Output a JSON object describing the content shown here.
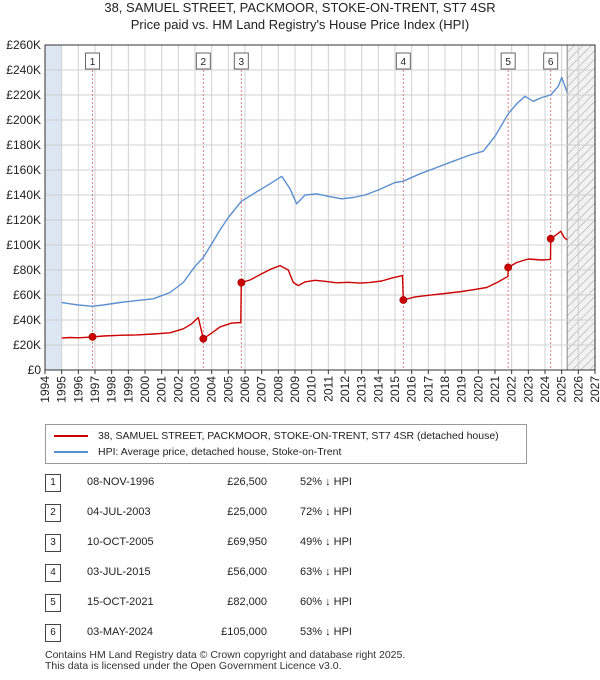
{
  "title_line1": "38, SAMUEL STREET, PACKMOOR, STOKE-ON-TRENT, ST7 4SR",
  "title_line2": "Price paid vs. HM Land Registry's House Price Index (HPI)",
  "colors": {
    "property": "#cc0000",
    "hpi": "#5b8fd0",
    "shade": "#dde6f3",
    "grid": "#d0d0d0",
    "marker_line": "#e08080"
  },
  "chart_data": {
    "type": "line",
    "x_range": [
      1994,
      2027
    ],
    "y_range": [
      0,
      260000
    ],
    "y_ticks": [
      {
        "value": 0,
        "label": "£0"
      },
      {
        "value": 20000,
        "label": "£20K"
      },
      {
        "value": 40000,
        "label": "£40K"
      },
      {
        "value": 60000,
        "label": "£60K"
      },
      {
        "value": 80000,
        "label": "£80K"
      },
      {
        "value": 100000,
        "label": "£100K"
      },
      {
        "value": 120000,
        "label": "£120K"
      },
      {
        "value": 140000,
        "label": "£140K"
      },
      {
        "value": 160000,
        "label": "£160K"
      },
      {
        "value": 180000,
        "label": "£180K"
      },
      {
        "value": 200000,
        "label": "£200K"
      },
      {
        "value": 220000,
        "label": "£220K"
      },
      {
        "value": 240000,
        "label": "£240K"
      },
      {
        "value": 260000,
        "label": "£260K"
      }
    ],
    "x_ticks": [
      1994,
      1995,
      1996,
      1997,
      1998,
      1999,
      2000,
      2001,
      2002,
      2003,
      2004,
      2005,
      2006,
      2007,
      2008,
      2009,
      2010,
      2011,
      2012,
      2013,
      2014,
      2015,
      2016,
      2017,
      2018,
      2019,
      2020,
      2021,
      2022,
      2023,
      2024,
      2025,
      2026,
      2027
    ],
    "data_start": 1995.0,
    "data_end": 2025.33,
    "series": [
      {
        "name": "38, SAMUEL STREET, PACKMOOR, STOKE-ON-TRENT, ST7 4SR (detached house)",
        "color_key": "property",
        "points": [
          [
            1995.0,
            25500
          ],
          [
            1995.5,
            26000
          ],
          [
            1996.0,
            25800
          ],
          [
            1996.5,
            26200
          ],
          [
            1996.85,
            26500
          ],
          [
            1997.5,
            27200
          ],
          [
            1998.5,
            27800
          ],
          [
            1999.5,
            28100
          ],
          [
            2000.5,
            28800
          ],
          [
            2001.5,
            29800
          ],
          [
            2002.3,
            33000
          ],
          [
            2002.8,
            37000
          ],
          [
            2003.2,
            42000
          ],
          [
            2003.5,
            25000
          ],
          [
            2004.0,
            29500
          ],
          [
            2004.5,
            34500
          ],
          [
            2005.2,
            37500
          ],
          [
            2005.75,
            38000
          ],
          [
            2005.78,
            69950
          ],
          [
            2006.3,
            72000
          ],
          [
            2007.0,
            77000
          ],
          [
            2007.6,
            81000
          ],
          [
            2008.1,
            83500
          ],
          [
            2008.6,
            80000
          ],
          [
            2008.9,
            70000
          ],
          [
            2009.2,
            67500
          ],
          [
            2009.6,
            70500
          ],
          [
            2010.2,
            71800
          ],
          [
            2010.8,
            71000
          ],
          [
            2011.5,
            69800
          ],
          [
            2012.2,
            70200
          ],
          [
            2012.9,
            69500
          ],
          [
            2013.5,
            70100
          ],
          [
            2014.2,
            71200
          ],
          [
            2014.8,
            73500
          ],
          [
            2015.45,
            75500
          ],
          [
            2015.5,
            56000
          ],
          [
            2016.2,
            58500
          ],
          [
            2017.0,
            59800
          ],
          [
            2018.0,
            61200
          ],
          [
            2019.0,
            62800
          ],
          [
            2019.8,
            64500
          ],
          [
            2020.5,
            66000
          ],
          [
            2021.2,
            70500
          ],
          [
            2021.78,
            75000
          ],
          [
            2021.79,
            82000
          ],
          [
            2022.3,
            86000
          ],
          [
            2023.0,
            88800
          ],
          [
            2023.8,
            88000
          ],
          [
            2024.33,
            88500
          ],
          [
            2024.34,
            105000
          ],
          [
            2024.7,
            108500
          ],
          [
            2024.95,
            111000
          ],
          [
            2025.15,
            106000
          ],
          [
            2025.33,
            104000
          ]
        ]
      },
      {
        "name": "HPI: Average price, detached house, Stoke-on-Trent",
        "color_key": "hpi",
        "points": [
          [
            1995.0,
            54000
          ],
          [
            1995.5,
            53000
          ],
          [
            1996.0,
            52000
          ],
          [
            1996.85,
            51000
          ],
          [
            1997.5,
            52000
          ],
          [
            1998.5,
            54000
          ],
          [
            1999.5,
            55500
          ],
          [
            2000.5,
            57000
          ],
          [
            2001.5,
            62000
          ],
          [
            2002.3,
            70000
          ],
          [
            2003.0,
            83000
          ],
          [
            2003.5,
            90000
          ],
          [
            2004.0,
            101000
          ],
          [
            2004.5,
            112000
          ],
          [
            2005.0,
            122000
          ],
          [
            2005.78,
            135000
          ],
          [
            2006.5,
            141000
          ],
          [
            2007.5,
            149000
          ],
          [
            2008.2,
            155000
          ],
          [
            2008.7,
            145000
          ],
          [
            2009.1,
            133000
          ],
          [
            2009.6,
            140000
          ],
          [
            2010.3,
            141000
          ],
          [
            2011.0,
            139000
          ],
          [
            2011.8,
            137000
          ],
          [
            2012.5,
            138000
          ],
          [
            2013.2,
            140000
          ],
          [
            2014.0,
            144000
          ],
          [
            2015.0,
            150000
          ],
          [
            2015.5,
            151000
          ],
          [
            2016.5,
            157000
          ],
          [
            2017.5,
            162000
          ],
          [
            2018.5,
            167000
          ],
          [
            2019.5,
            172000
          ],
          [
            2020.3,
            175000
          ],
          [
            2021.0,
            187000
          ],
          [
            2021.79,
            205000
          ],
          [
            2022.3,
            213000
          ],
          [
            2022.8,
            219000
          ],
          [
            2023.3,
            215000
          ],
          [
            2023.8,
            218000
          ],
          [
            2024.34,
            220000
          ],
          [
            2024.8,
            227000
          ],
          [
            2025.0,
            234000
          ],
          [
            2025.33,
            222000
          ]
        ]
      }
    ],
    "markers": [
      {
        "label": "1",
        "x": 1996.85,
        "value": 26500
      },
      {
        "label": "2",
        "x": 2003.5,
        "value": 25000
      },
      {
        "label": "3",
        "x": 2005.78,
        "value": 69950
      },
      {
        "label": "4",
        "x": 2015.5,
        "value": 56000
      },
      {
        "label": "5",
        "x": 2021.79,
        "value": 82000
      },
      {
        "label": "6",
        "x": 2024.34,
        "value": 105000
      }
    ]
  },
  "legend": {
    "property_label": "38, SAMUEL STREET, PACKMOOR, STOKE-ON-TRENT, ST7 4SR (detached house)",
    "hpi_label": "HPI: Average price, detached house, Stoke-on-Trent"
  },
  "sales": [
    {
      "num": "1",
      "date": "08-NOV-1996",
      "price": "£26,500",
      "hpi": "52% ↓ HPI"
    },
    {
      "num": "2",
      "date": "04-JUL-2003",
      "price": "£25,000",
      "hpi": "72% ↓ HPI"
    },
    {
      "num": "3",
      "date": "10-OCT-2005",
      "price": "£69,950",
      "hpi": "49% ↓ HPI"
    },
    {
      "num": "4",
      "date": "03-JUL-2015",
      "price": "£56,000",
      "hpi": "63% ↓ HPI"
    },
    {
      "num": "5",
      "date": "15-OCT-2021",
      "price": "£82,000",
      "hpi": "60% ↓ HPI"
    },
    {
      "num": "6",
      "date": "03-MAY-2024",
      "price": "£105,000",
      "hpi": "53% ↓ HPI"
    }
  ],
  "footer_line1": "Contains HM Land Registry data © Crown copyright and database right 2025.",
  "footer_line2": "This data is licensed under the Open Government Licence v3.0."
}
